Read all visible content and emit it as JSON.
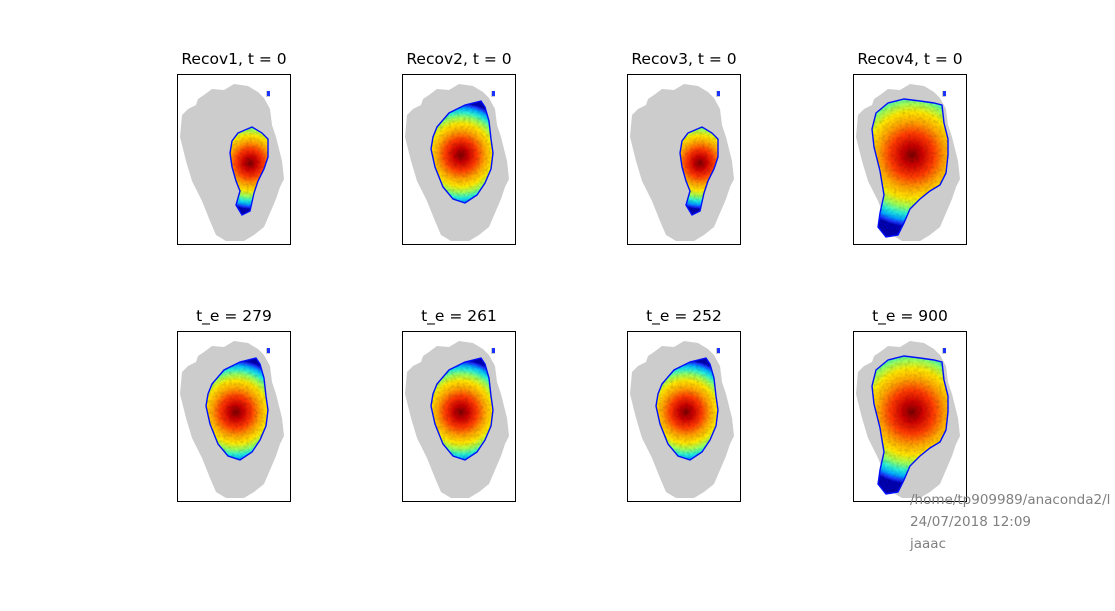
{
  "chart_data": [
    {
      "type": "heatmap",
      "title": "Recov1, t = 0",
      "colormap": "jet",
      "mask_color": "#cccccc",
      "blob": {
        "extent": "small",
        "location": "center-east"
      },
      "ticks": "none"
    },
    {
      "type": "heatmap",
      "title": "Recov2, t = 0",
      "colormap": "jet",
      "mask_color": "#cccccc",
      "blob": {
        "extent": "medium",
        "location": "center"
      },
      "ticks": "none"
    },
    {
      "type": "heatmap",
      "title": "Recov3, t = 0",
      "colormap": "jet",
      "mask_color": "#cccccc",
      "blob": {
        "extent": "small",
        "location": "center-east"
      },
      "ticks": "none"
    },
    {
      "type": "heatmap",
      "title": "Recov4, t = 0",
      "colormap": "jet",
      "mask_color": "#cccccc",
      "blob": {
        "extent": "full",
        "location": "whole ice sheet"
      },
      "ticks": "none"
    },
    {
      "type": "heatmap",
      "title": "t_e = 279",
      "colormap": "jet",
      "mask_color": "#cccccc",
      "blob": {
        "extent": "medium",
        "location": "center"
      },
      "ticks": "none"
    },
    {
      "type": "heatmap",
      "title": "t_e = 261",
      "colormap": "jet",
      "mask_color": "#cccccc",
      "blob": {
        "extent": "medium",
        "location": "center"
      },
      "ticks": "none"
    },
    {
      "type": "heatmap",
      "title": "t_e = 252",
      "colormap": "jet",
      "mask_color": "#cccccc",
      "blob": {
        "extent": "medium",
        "location": "center"
      },
      "ticks": "none"
    },
    {
      "type": "heatmap",
      "title": "t_e = 900",
      "colormap": "jet",
      "mask_color": "#cccccc",
      "blob": {
        "extent": "full",
        "location": "whole ice sheet"
      },
      "ticks": "none"
    }
  ],
  "footer": {
    "path": "/home/tp909989/anaconda2/l",
    "datetime": "24/07/2018 12:09",
    "user": "jaaac"
  }
}
